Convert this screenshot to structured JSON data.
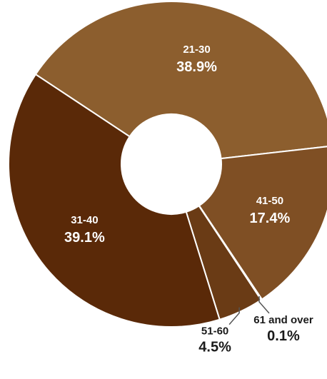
{
  "chart_data": {
    "type": "pie",
    "donut": true,
    "categories": [
      "21-30",
      "41-50",
      "61 and over",
      "51-60",
      "31-40"
    ],
    "values": [
      38.9,
      17.4,
      0.1,
      4.5,
      39.1
    ],
    "labels": [
      "38.9%",
      "17.4%",
      "0.1%",
      "4.5%",
      "39.1%"
    ],
    "colors": [
      "#8c5e2e",
      "#7f4f24",
      "#5e320e",
      "#6a3b15",
      "#5a2908"
    ],
    "label_colors": [
      "#ffffff",
      "#ffffff",
      "#1a1a1a",
      "#1a1a1a",
      "#ffffff"
    ],
    "title": "",
    "legend": "none"
  }
}
